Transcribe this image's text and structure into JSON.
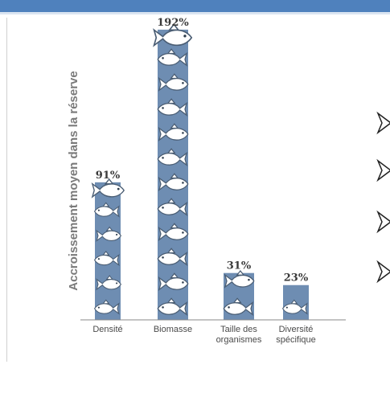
{
  "chart_data": {
    "type": "bar",
    "ylabel": "Accroissement moyen dans la réserve",
    "categories": [
      [
        "Densité"
      ],
      [
        "Biomasse"
      ],
      [
        "Taille des",
        "organismes"
      ],
      [
        "Diversité",
        "spécifique"
      ]
    ],
    "values": [
      91,
      192,
      31,
      23
    ],
    "value_labels": [
      "91%",
      "192%",
      "31%",
      "23%"
    ],
    "ylim": [
      0,
      200
    ],
    "bar_color": "#6e8db2",
    "grid": false,
    "legend": "none"
  },
  "decor": {
    "header_color": "#4f81bd",
    "bullet_icon": "arrowhead-bullet-icon",
    "bullet_count": 4
  }
}
